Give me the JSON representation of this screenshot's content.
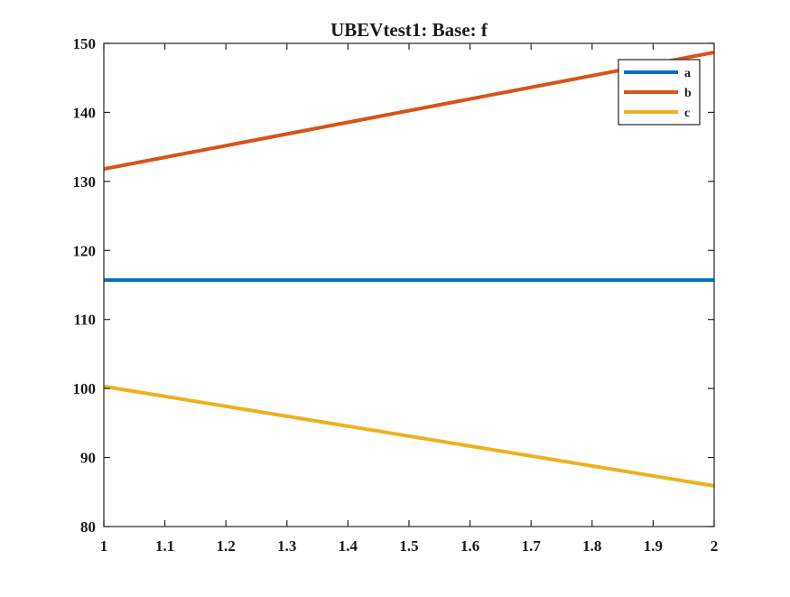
{
  "chart_data": {
    "type": "line",
    "title": "UBEVtest1: Base: f",
    "xlabel": "",
    "ylabel": "",
    "xlim": [
      1,
      2
    ],
    "ylim": [
      80,
      150
    ],
    "xticks": [
      1,
      1.1,
      1.2,
      1.3,
      1.4,
      1.5,
      1.6,
      1.7,
      1.8,
      1.9,
      2
    ],
    "xtick_labels": [
      "1",
      "1.1",
      "1.2",
      "1.3",
      "1.4",
      "1.5",
      "1.6",
      "1.7",
      "1.8",
      "1.9",
      "2"
    ],
    "yticks": [
      80,
      90,
      100,
      110,
      120,
      130,
      140,
      150
    ],
    "ytick_labels": [
      "80",
      "90",
      "100",
      "110",
      "120",
      "130",
      "140",
      "150"
    ],
    "grid": false,
    "legend": "top-right",
    "series": [
      {
        "name": "a",
        "color": "#0072BD",
        "x": [
          1,
          2
        ],
        "y": [
          115.7,
          115.7
        ]
      },
      {
        "name": "b",
        "color": "#D95319",
        "x": [
          1,
          2
        ],
        "y": [
          131.8,
          148.7
        ]
      },
      {
        "name": "c",
        "color": "#EDB120",
        "x": [
          1,
          2
        ],
        "y": [
          100.3,
          85.9
        ]
      }
    ]
  }
}
